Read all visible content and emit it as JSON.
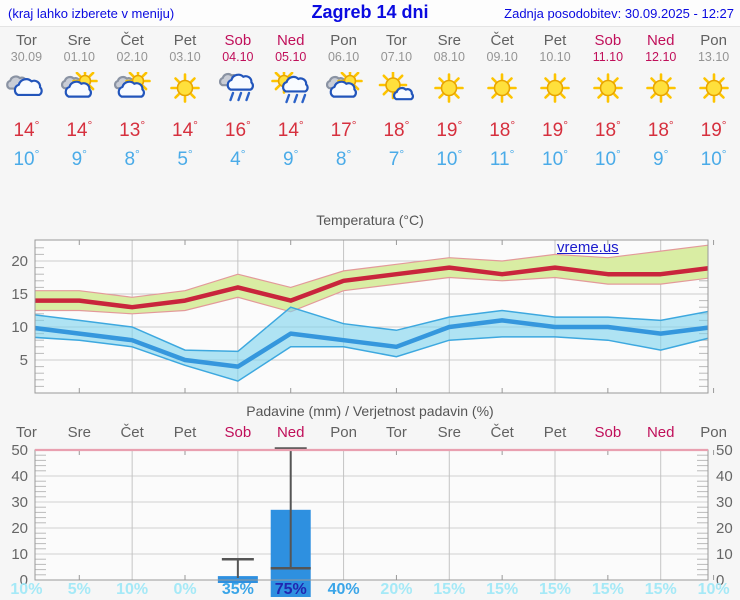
{
  "header": {
    "hint": "(kraj lahko izberete v meniju)",
    "title": "Zagreb 14 dni",
    "updated": "Zadnja posodobitev: 30.09.2025 - 12:27"
  },
  "forecast": {
    "degree_symbol": "°",
    "days": [
      {
        "day": "Tor",
        "date": "30.09",
        "icon": "cloudy",
        "tmax": 14,
        "tmin": 10,
        "weekend": false
      },
      {
        "day": "Sre",
        "date": "01.10",
        "icon": "partly-cloudy",
        "tmax": 14,
        "tmin": 9,
        "weekend": false
      },
      {
        "day": "Čet",
        "date": "02.10",
        "icon": "partly-cloudy",
        "tmax": 13,
        "tmin": 8,
        "weekend": false
      },
      {
        "day": "Pet",
        "date": "03.10",
        "icon": "sunny",
        "tmax": 14,
        "tmin": 5,
        "weekend": false
      },
      {
        "day": "Sob",
        "date": "04.10",
        "icon": "rain",
        "tmax": 16,
        "tmin": 4,
        "weekend": true
      },
      {
        "day": "Ned",
        "date": "05.10",
        "icon": "rain-showers",
        "tmax": 14,
        "tmin": 9,
        "weekend": true
      },
      {
        "day": "Pon",
        "date": "06.10",
        "icon": "partly-cloudy",
        "tmax": 17,
        "tmin": 8,
        "weekend": false
      },
      {
        "day": "Tor",
        "date": "07.10",
        "icon": "mostly-sunny",
        "tmax": 18,
        "tmin": 7,
        "weekend": false
      },
      {
        "day": "Sre",
        "date": "08.10",
        "icon": "sunny",
        "tmax": 19,
        "tmin": 10,
        "weekend": false
      },
      {
        "day": "Čet",
        "date": "09.10",
        "icon": "sunny",
        "tmax": 18,
        "tmin": 11,
        "weekend": false
      },
      {
        "day": "Pet",
        "date": "10.10",
        "icon": "sunny",
        "tmax": 19,
        "tmin": 10,
        "weekend": false
      },
      {
        "day": "Sob",
        "date": "11.10",
        "icon": "sunny",
        "tmax": 18,
        "tmin": 10,
        "weekend": true
      },
      {
        "day": "Ned",
        "date": "12.10",
        "icon": "sunny",
        "tmax": 18,
        "tmin": 9,
        "weekend": true
      },
      {
        "day": "Pon",
        "date": "13.10",
        "icon": "sunny",
        "tmax": 19,
        "tmin": 10,
        "weekend": false
      }
    ]
  },
  "chart_data": [
    {
      "type": "line",
      "title": "Temperatura (°C)",
      "watermark": "vreme.us",
      "x": [
        "Tor 30.09",
        "Sre 01.10",
        "Čet 02.10",
        "Pet 03.10",
        "Sob 04.10",
        "Ned 05.10",
        "Pon 06.10",
        "Tor 07.10",
        "Sre 08.10",
        "Čet 09.10",
        "Pet 10.10",
        "Sob 11.10",
        "Ned 12.10",
        "Pon 13.10"
      ],
      "ylim": [
        0,
        23
      ],
      "yticks": [
        5,
        10,
        15,
        20
      ],
      "grid": true,
      "legend_position": "none",
      "series": [
        {
          "name": "t-max",
          "color": "#c9253c",
          "values": [
            14,
            14,
            13,
            14,
            16,
            14,
            17,
            18,
            19,
            18,
            19,
            18,
            18,
            19
          ]
        },
        {
          "name": "t-max-range-upper",
          "values": [
            15.5,
            15.5,
            14.5,
            15.5,
            18,
            16,
            18.5,
            19.5,
            20.5,
            20,
            21,
            20.5,
            21.5,
            22.5
          ]
        },
        {
          "name": "t-max-range-lower",
          "values": [
            12.5,
            12.5,
            12,
            12.5,
            14.5,
            12.3,
            15.5,
            16.5,
            17.5,
            17,
            17.5,
            16.5,
            16.5,
            17.5
          ]
        },
        {
          "name": "t-min",
          "color": "#3597dd",
          "values": [
            10,
            9,
            8,
            5,
            4,
            9,
            8,
            7,
            10,
            11,
            10,
            10,
            9,
            10
          ]
        },
        {
          "name": "t-min-range-upper",
          "values": [
            12,
            11,
            10,
            6.5,
            6.3,
            13,
            10.5,
            9.5,
            11.5,
            12.5,
            11.5,
            11.5,
            11,
            12.5
          ]
        },
        {
          "name": "t-min-range-lower",
          "values": [
            8.5,
            8,
            7,
            4.2,
            1.8,
            7,
            7,
            5.5,
            8,
            8.5,
            8.5,
            8,
            6.5,
            8.5
          ]
        }
      ]
    },
    {
      "type": "bar",
      "title": "Padavine (mm) / Verjetnost padavin (%)",
      "categories": [
        "Tor",
        "Sre",
        "Čet",
        "Pet",
        "Sob",
        "Ned",
        "Pon",
        "Tor",
        "Sre",
        "Čet",
        "Pet",
        "Sob",
        "Ned",
        "Pon"
      ],
      "weekend_index": [
        4,
        5,
        11,
        12
      ],
      "values": [
        0,
        0,
        0,
        0,
        1.5,
        27,
        0,
        0,
        0,
        0,
        0,
        0,
        0,
        0
      ],
      "whiskers": [
        null,
        null,
        null,
        null,
        {
          "low": 1,
          "high": 8
        },
        {
          "low": 4.5,
          "high": 52
        },
        null,
        null,
        null,
        null,
        null,
        null,
        null,
        null
      ],
      "probabilities": [
        "10%",
        "5%",
        "10%",
        "0%",
        "35%",
        "75%",
        "40%",
        "20%",
        "15%",
        "15%",
        "15%",
        "15%",
        "15%",
        "10%"
      ],
      "ylim": [
        0,
        50
      ],
      "yticks": [
        0,
        10,
        20,
        30,
        40,
        50
      ],
      "grid": true
    }
  ],
  "colors": {
    "header_blue": "#0a0ae0",
    "weekend": "#c00f5a",
    "tmax_red": "#d6303e",
    "tmin_blue": "#4aabe8",
    "temp_max_line": "#c9253c",
    "temp_max_band": "#d9eda3",
    "temp_max_band_edge": "#e39a9a",
    "temp_min_line": "#3597dd",
    "temp_min_band": "#7fd4ee",
    "temp_min_band_edge": "#3da8df",
    "bar_blue": "#2e90e0",
    "whisker": "#555555",
    "fifty_line": "#e9a0b0",
    "prob_light": "#a5e9f7",
    "prob_mid": "#3aa5e8",
    "prob_dark": "#2026b0",
    "watermark_blue": "#1a1acc"
  }
}
